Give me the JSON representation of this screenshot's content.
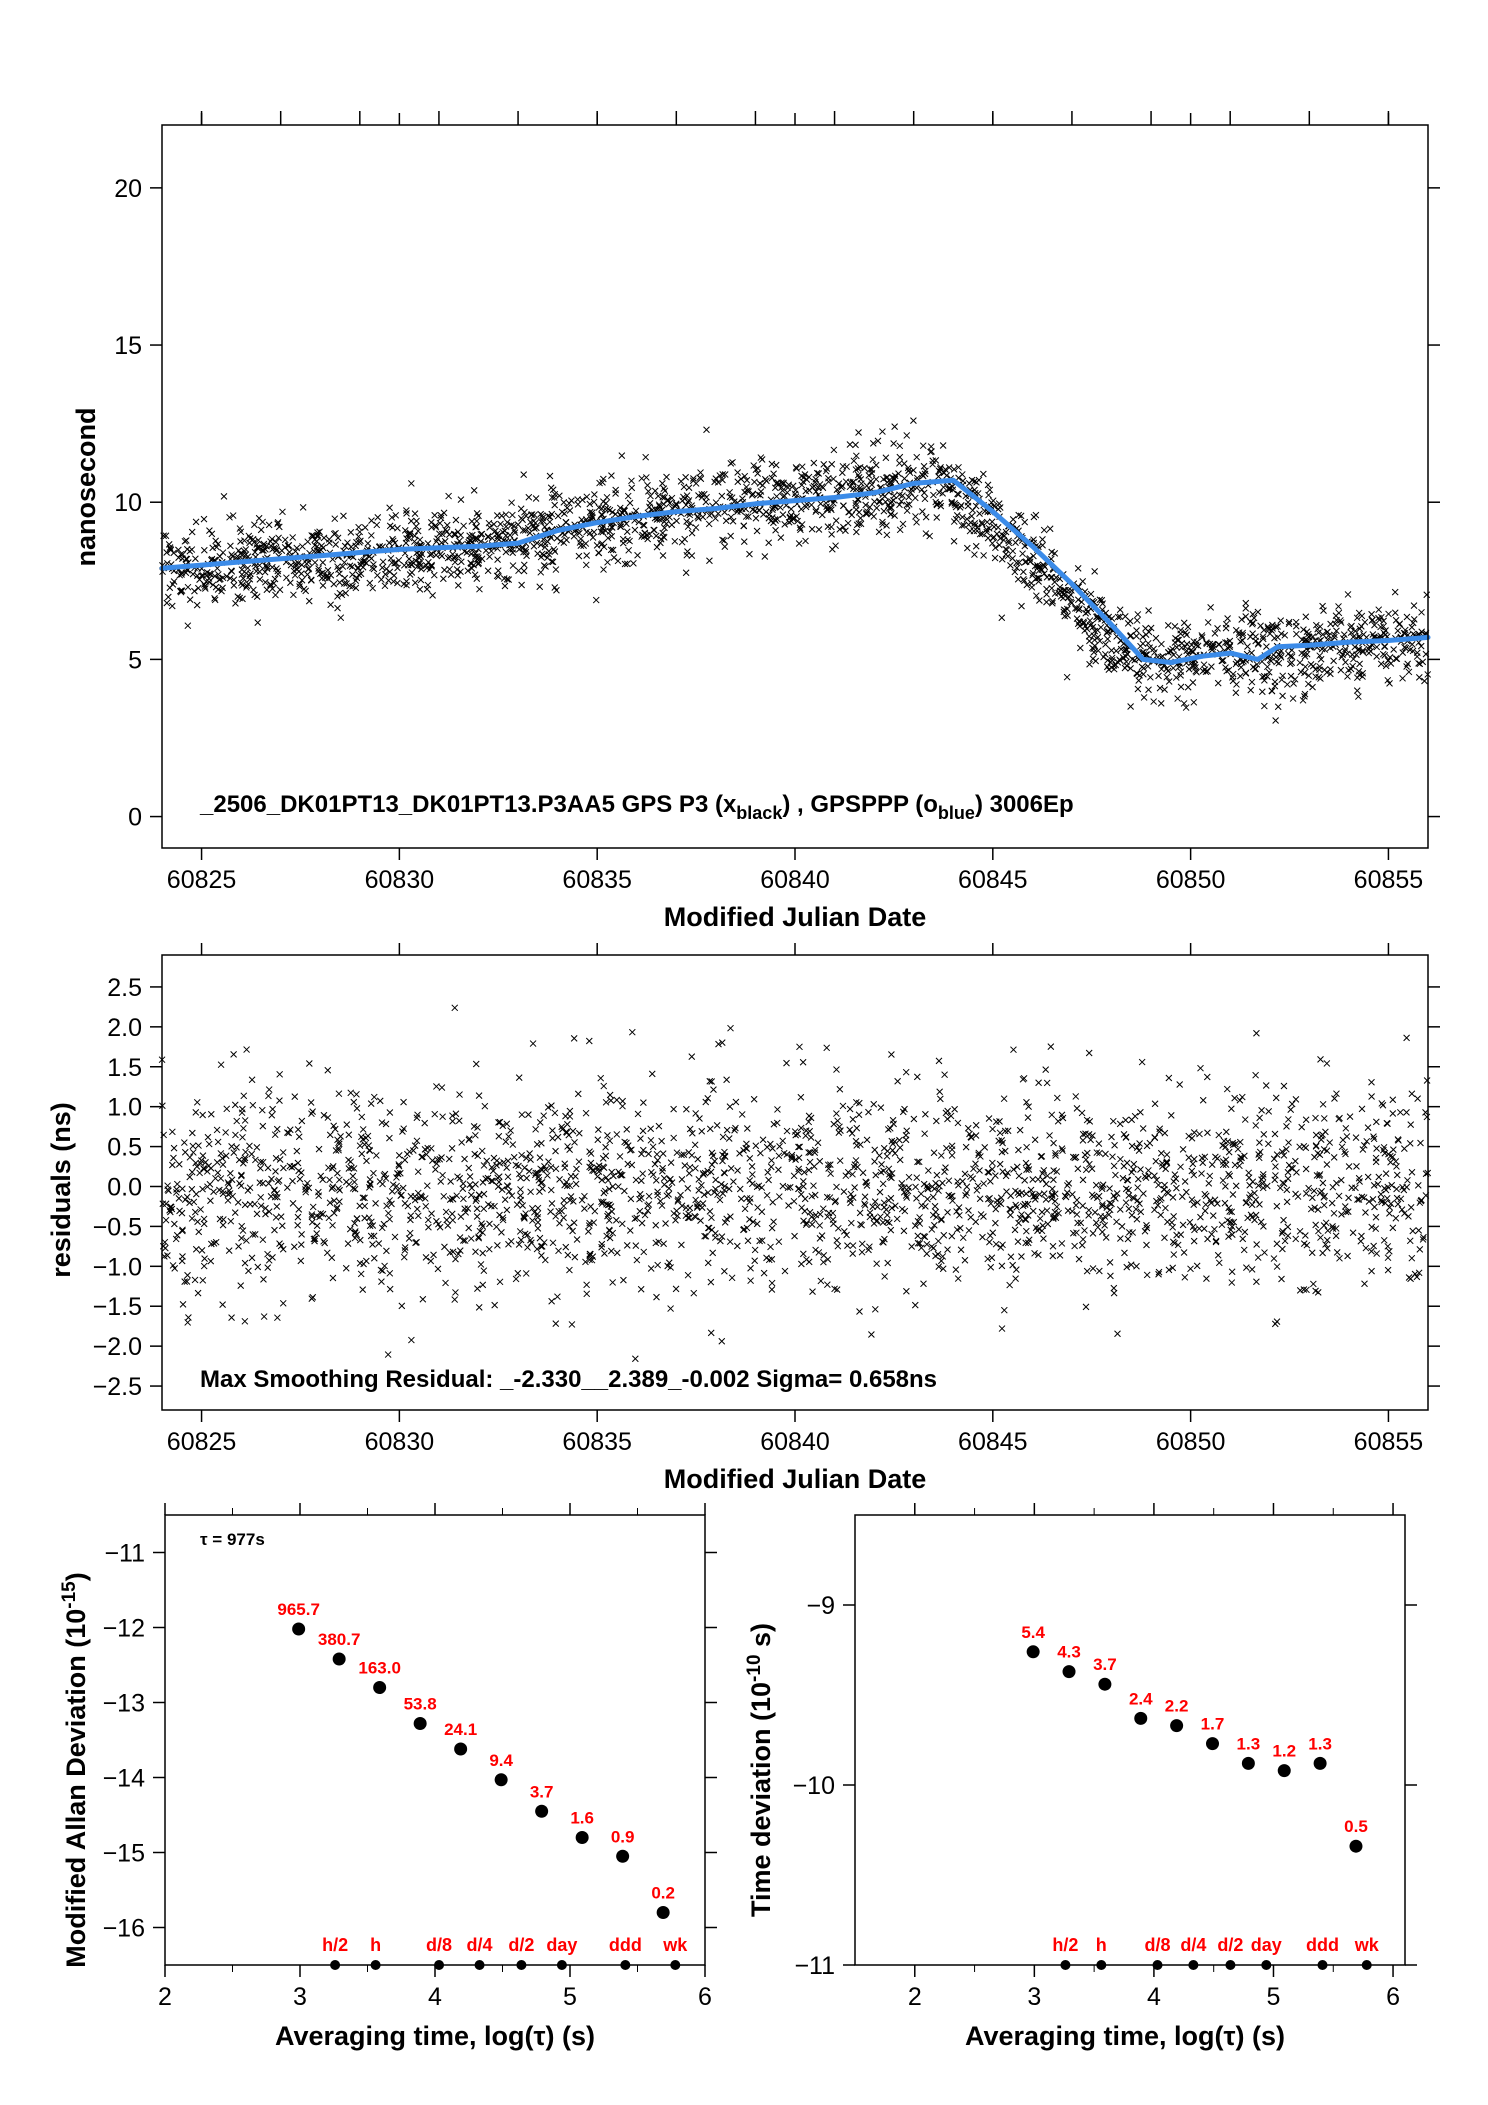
{
  "chart_data": [
    {
      "type": "scatter",
      "xlabel": "Modified Julian Date",
      "ylabel": "nanosecond",
      "xlim": [
        60824,
        60856
      ],
      "ylim": [
        -1,
        22
      ],
      "xticks": [
        60825,
        60830,
        60835,
        60840,
        60845,
        60850,
        60855
      ],
      "yticks": [
        0,
        5,
        10,
        15,
        20
      ],
      "annotation": "_2506_DK01PT13_DK01PT13.P3AA5     GPS P3 (x",
      "annotation_sub1": "black",
      "annotation_mid": ") ,  GPSPPP (o",
      "annotation_sub2": "blue",
      "annotation_end": ")  3006Ep",
      "series": [
        {
          "marker": "x",
          "color": "#000000",
          "trend_x": [
            60824,
            60826,
            60828,
            60830,
            60832,
            60833,
            60834,
            60836,
            60838,
            60840,
            60842,
            60843.5,
            60844,
            60845,
            60846,
            60847,
            60848,
            60848.8,
            60850,
            60851,
            60852,
            60853,
            60854,
            60856
          ],
          "trend_y": [
            7.8,
            8.0,
            8.2,
            8.5,
            8.6,
            8.8,
            9.2,
            9.6,
            9.9,
            10.1,
            10.4,
            10.6,
            10.3,
            9.3,
            8.2,
            6.9,
            5.6,
            5.0,
            5.0,
            5.2,
            5.1,
            5.4,
            5.5,
            5.7
          ],
          "spread": 0.65
        },
        {
          "marker": "line",
          "color": "#3b8be8",
          "x": [
            60824,
            60825,
            60826,
            60827,
            60828,
            60829,
            60830,
            60831,
            60832,
            60833,
            60834,
            60835,
            60836,
            60837,
            60838,
            60839,
            60840,
            60841,
            60842,
            60843,
            60844,
            60845,
            60846,
            60847,
            60848,
            60848.8,
            60849.5,
            60850.3,
            60851,
            60851.7,
            60852.2,
            60853,
            60854,
            60855,
            60856
          ],
          "y": [
            7.9,
            8.0,
            8.1,
            8.2,
            8.3,
            8.4,
            8.5,
            8.55,
            8.6,
            8.7,
            9.1,
            9.35,
            9.55,
            9.7,
            9.8,
            9.95,
            10.05,
            10.15,
            10.3,
            10.6,
            10.7,
            9.7,
            8.6,
            7.4,
            6.1,
            5.0,
            4.9,
            5.1,
            5.2,
            5.0,
            5.4,
            5.45,
            5.55,
            5.6,
            5.7
          ]
        }
      ]
    },
    {
      "type": "scatter",
      "xlabel": "Modified Julian Date",
      "ylabel": "residuals (ns)",
      "xlim": [
        60824,
        60856
      ],
      "ylim": [
        -2.8,
        2.9
      ],
      "xticks": [
        60825,
        60830,
        60835,
        60840,
        60845,
        60850,
        60855
      ],
      "yticks": [
        -2.5,
        -2.0,
        -1.5,
        -1.0,
        -0.5,
        0.0,
        0.5,
        1.0,
        1.5,
        2.0,
        2.5
      ],
      "ytick_labels": [
        "−2.5",
        "−2.0",
        "−1.5",
        "−1.0",
        "−0.5",
        "0.0",
        "0.5",
        "1.0",
        "1.5",
        "2.0",
        "2.5"
      ],
      "annotation": "Max Smoothing Residual: _-2.330__2.389_-0.002  Sigma= 0.658ns",
      "series": [
        {
          "marker": "x",
          "color": "#000000",
          "spread": 0.658
        }
      ]
    },
    {
      "type": "scatter",
      "xlabel": "Averaging time, log(τ) (s)",
      "ylabel": "Modified Allan Deviation (10",
      "ylabel_sup": "-15",
      "ylabel_end": ")",
      "xlim": [
        2,
        6
      ],
      "ylim": [
        -16.5,
        -10.5
      ],
      "xticks": [
        2,
        3,
        4,
        5,
        6
      ],
      "yticks": [
        -16,
        -15,
        -14,
        -13,
        -12,
        -11
      ],
      "ytick_labels": [
        "−16",
        "−15",
        "−14",
        "−13",
        "−12",
        "−11"
      ],
      "tau_label": "τ = 977s",
      "points": [
        {
          "x": 2.99,
          "y": -12.02,
          "label": "965.7"
        },
        {
          "x": 3.29,
          "y": -12.42,
          "label": "380.7"
        },
        {
          "x": 3.59,
          "y": -12.8,
          "label": "163.0"
        },
        {
          "x": 3.89,
          "y": -13.28,
          "label": "53.8"
        },
        {
          "x": 4.19,
          "y": -13.62,
          "label": "24.1"
        },
        {
          "x": 4.49,
          "y": -14.03,
          "label": "9.4"
        },
        {
          "x": 4.79,
          "y": -14.45,
          "label": "3.7"
        },
        {
          "x": 5.09,
          "y": -14.8,
          "label": "1.6"
        },
        {
          "x": 5.39,
          "y": -15.05,
          "label": "0.9"
        },
        {
          "x": 5.69,
          "y": -15.8,
          "label": "0.2"
        }
      ],
      "time_markers": [
        {
          "x": 3.26,
          "label": "h/2"
        },
        {
          "x": 3.56,
          "label": "h"
        },
        {
          "x": 4.03,
          "label": "d/8"
        },
        {
          "x": 4.33,
          "label": "d/4"
        },
        {
          "x": 4.64,
          "label": "d/2"
        },
        {
          "x": 4.94,
          "label": "day"
        },
        {
          "x": 5.41,
          "label": "ddd"
        },
        {
          "x": 5.78,
          "label": "wk"
        }
      ]
    },
    {
      "type": "scatter",
      "xlabel": "Averaging time, log(τ) (s)",
      "ylabel": "Time deviation (10",
      "ylabel_sup": "-10",
      "ylabel_end": " s)",
      "xlim": [
        1.5,
        6.1
      ],
      "ylim": [
        -11,
        -8.5
      ],
      "xticks": [
        2,
        3,
        4,
        5,
        6
      ],
      "yticks": [
        -11,
        -10,
        -9
      ],
      "ytick_labels": [
        "−11",
        "−10",
        "−9"
      ],
      "points": [
        {
          "x": 2.99,
          "y": -9.26,
          "label": "5.4"
        },
        {
          "x": 3.29,
          "y": -9.37,
          "label": "4.3"
        },
        {
          "x": 3.59,
          "y": -9.44,
          "label": "3.7"
        },
        {
          "x": 3.89,
          "y": -9.63,
          "label": "2.4"
        },
        {
          "x": 4.19,
          "y": -9.67,
          "label": "2.2"
        },
        {
          "x": 4.49,
          "y": -9.77,
          "label": "1.7"
        },
        {
          "x": 4.79,
          "y": -9.88,
          "label": "1.3"
        },
        {
          "x": 5.09,
          "y": -9.92,
          "label": "1.2"
        },
        {
          "x": 5.39,
          "y": -9.88,
          "label": "1.3"
        },
        {
          "x": 5.69,
          "y": -10.34,
          "label": "0.5"
        }
      ],
      "time_markers": [
        {
          "x": 3.26,
          "label": "h/2"
        },
        {
          "x": 3.56,
          "label": "h"
        },
        {
          "x": 4.03,
          "label": "d/8"
        },
        {
          "x": 4.33,
          "label": "d/4"
        },
        {
          "x": 4.64,
          "label": "d/2"
        },
        {
          "x": 4.94,
          "label": "day"
        },
        {
          "x": 5.41,
          "label": "ddd"
        },
        {
          "x": 5.78,
          "label": "wk"
        }
      ]
    }
  ]
}
